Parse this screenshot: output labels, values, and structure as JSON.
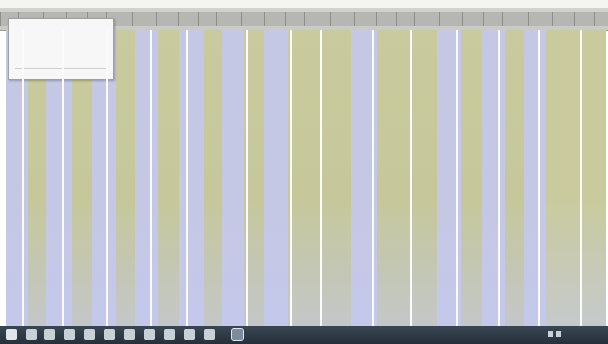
{
  "menu": {
    "title": "",
    "rows": [
      {
        "label": "",
        "value": ""
      },
      {
        "label": "",
        "value": ""
      },
      {
        "label": "",
        "value": ""
      },
      {
        "label": "",
        "value": ""
      }
    ],
    "footer": {
      "label": "",
      "value": ""
    }
  },
  "taskbar": {
    "clock": ""
  },
  "colors": {
    "canvas": "#c9cb9e",
    "lavender_cell": "#c4c8f0",
    "header": "#c9c9c6",
    "taskbar": "#2d3843"
  },
  "icons": [
    "windows-start-icon",
    "search-icon",
    "task-view-icon",
    "file-explorer-icon",
    "browser-icon",
    "store-icon",
    "mail-icon",
    "app-icon",
    "app-icon",
    "app-icon",
    "app-icon",
    "spreadsheet-app-icon",
    "network-icon",
    "volume-icon"
  ]
}
